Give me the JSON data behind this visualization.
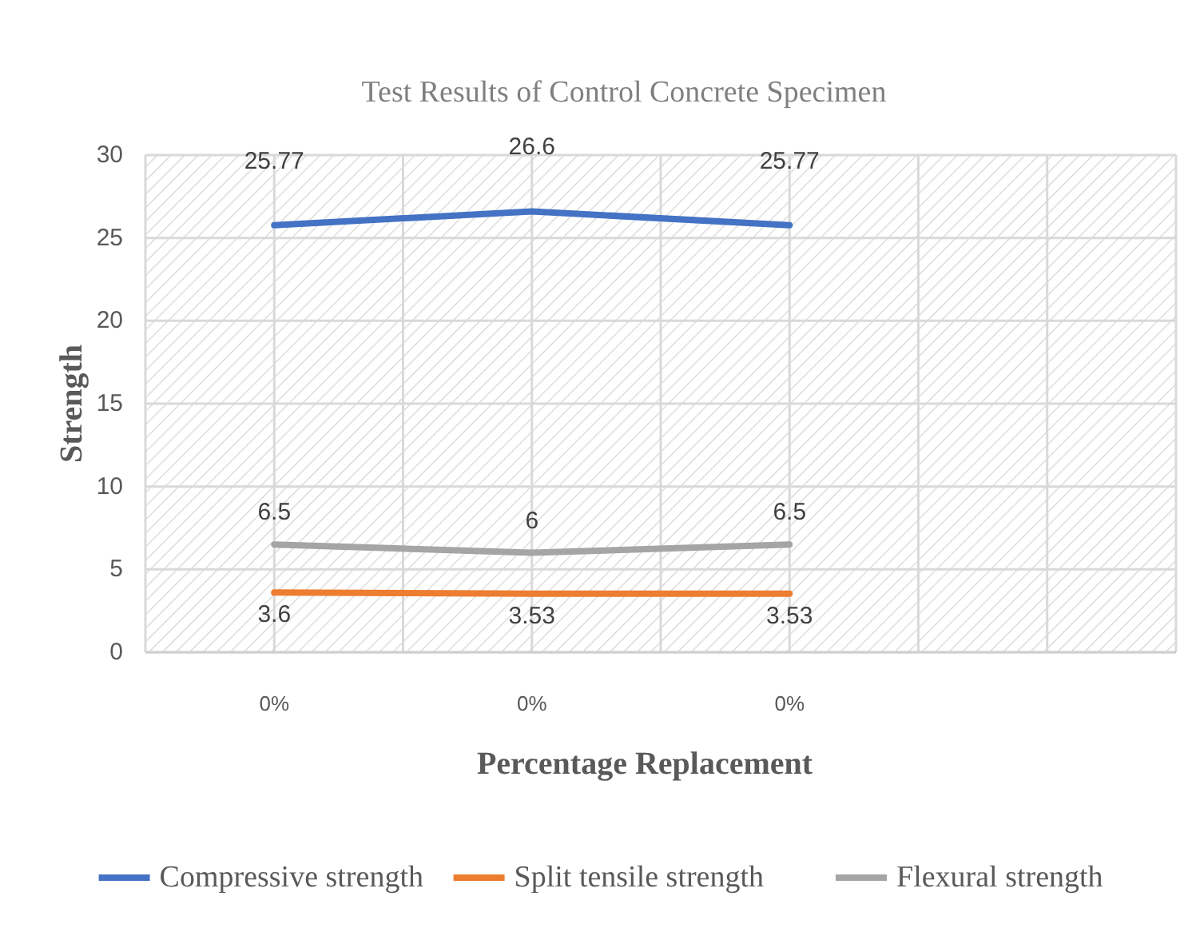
{
  "chart_data": {
    "type": "line",
    "title": "Test Results of Control Concrete Specimen",
    "xlabel": "Percentage Replacement",
    "ylabel": "Strength",
    "categories": [
      "0%",
      "0%",
      "0%",
      null
    ],
    "series": [
      {
        "name": "Compressive strength",
        "color": "#4472c4",
        "values": [
          25.77,
          26.6,
          25.77,
          null
        ]
      },
      {
        "name": "Split tensile strength",
        "color": "#ed7d31",
        "values": [
          3.6,
          3.53,
          3.53,
          null
        ]
      },
      {
        "name": "Flexural strength",
        "color": "#a5a5a5",
        "values": [
          6.5,
          6,
          6.5,
          null
        ]
      }
    ],
    "ylim": [
      0,
      30
    ],
    "yticks": [
      0,
      5,
      10,
      15,
      20,
      25,
      30
    ],
    "grid": true,
    "legend": "bottom",
    "data_labels": true,
    "marker": "none",
    "line_style": "solid"
  }
}
